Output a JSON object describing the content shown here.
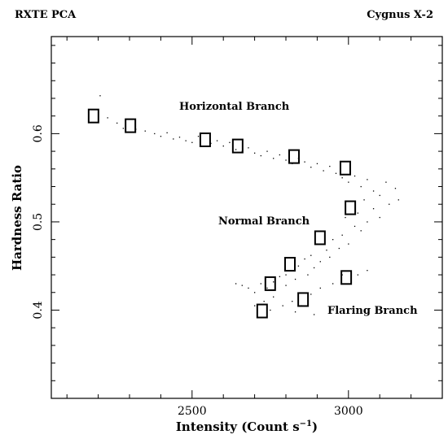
{
  "chart_data": {
    "type": "scatter",
    "title_left": "RXTE PCA",
    "title_right": "Cygnus X-2",
    "ylabel": "Hardness Ratio",
    "xlabel": {
      "text": "Intensity (Count s",
      "sup": "−1",
      "end": ")"
    },
    "annotations": [
      "Horizontal Branch",
      "Normal Branch",
      "Flaring Branch"
    ],
    "xlim": [
      2050,
      3300
    ],
    "ylim": [
      0.3,
      0.71
    ],
    "xticks": [
      2500,
      3000
    ],
    "yticks": [
      0.4,
      0.5,
      0.6
    ],
    "xminor": [
      2100,
      2200,
      2300,
      2400,
      2600,
      2700,
      2800,
      2900,
      3100,
      3200
    ],
    "yminor": [
      0.32,
      0.34,
      0.36,
      0.38,
      0.42,
      0.44,
      0.46,
      0.48,
      0.52,
      0.54,
      0.56,
      0.58,
      0.62,
      0.64,
      0.66,
      0.68,
      0.7
    ],
    "series": [
      {
        "name": "boxes",
        "color": "#000000",
        "marker": "square",
        "x": [
          2185,
          2303,
          2542,
          2646,
          2826,
          2990,
          3006,
          2909,
          2813,
          2750,
          2993,
          2855,
          2724
        ],
        "values": [
          0.62,
          0.609,
          0.593,
          0.586,
          0.574,
          0.561,
          0.516,
          0.482,
          0.452,
          0.43,
          0.437,
          0.412,
          0.399
        ]
      },
      {
        "name": "dots",
        "color": "#000000",
        "marker": "dot",
        "x": [
          2206,
          2230,
          2260,
          2280,
          2320,
          2350,
          2380,
          2400,
          2420,
          2440,
          2460,
          2480,
          2500,
          2520,
          2560,
          2580,
          2600,
          2620,
          2640,
          2660,
          2680,
          2700,
          2720,
          2740,
          2760,
          2780,
          2800,
          2820,
          2840,
          2860,
          2880,
          2900,
          2920,
          2940,
          2960,
          2980,
          3000,
          3020,
          3040,
          3060,
          3080,
          3100,
          3120,
          3150,
          3160,
          3130,
          3080,
          3050,
          3030,
          3100,
          3060,
          3020,
          2990,
          3040,
          2980,
          3000,
          2950,
          2970,
          2930,
          2900,
          2940,
          2880,
          2910,
          2860,
          2890,
          2840,
          2870,
          2820,
          2800,
          2830,
          2780,
          2760,
          2800,
          2740,
          2720,
          2700,
          2680,
          2660,
          2730,
          2760,
          2700,
          2750,
          2790,
          2820,
          2850,
          2880,
          2910,
          2950,
          2980,
          3030,
          3060,
          2890,
          2830,
          2640
        ],
        "values": [
          0.643,
          0.618,
          0.612,
          0.606,
          0.605,
          0.603,
          0.6,
          0.597,
          0.601,
          0.594,
          0.596,
          0.592,
          0.59,
          0.597,
          0.589,
          0.592,
          0.586,
          0.59,
          0.582,
          0.58,
          0.584,
          0.578,
          0.575,
          0.58,
          0.572,
          0.576,
          0.57,
          0.566,
          0.572,
          0.568,
          0.562,
          0.566,
          0.558,
          0.563,
          0.555,
          0.55,
          0.545,
          0.552,
          0.54,
          0.548,
          0.535,
          0.53,
          0.545,
          0.538,
          0.525,
          0.52,
          0.515,
          0.525,
          0.51,
          0.505,
          0.5,
          0.495,
          0.505,
          0.49,
          0.485,
          0.475,
          0.48,
          0.47,
          0.468,
          0.475,
          0.46,
          0.462,
          0.455,
          0.458,
          0.448,
          0.45,
          0.44,
          0.445,
          0.44,
          0.435,
          0.438,
          0.432,
          0.428,
          0.425,
          0.43,
          0.42,
          0.425,
          0.428,
          0.41,
          0.415,
          0.405,
          0.4,
          0.405,
          0.41,
          0.405,
          0.418,
          0.425,
          0.43,
          0.44,
          0.44,
          0.445,
          0.395,
          0.398,
          0.43
        ]
      }
    ]
  }
}
